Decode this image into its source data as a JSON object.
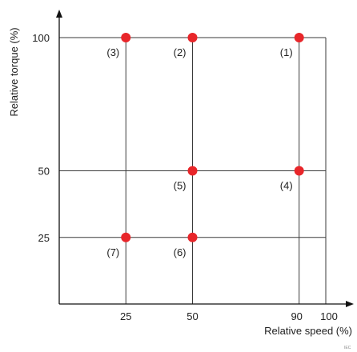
{
  "chart_data": {
    "type": "scatter",
    "xlabel": "Relative speed  (%)",
    "ylabel": "Relative torque  (%)",
    "xlim": [
      0,
      100
    ],
    "ylim": [
      0,
      100
    ],
    "x_ticks": [
      25,
      50,
      90,
      100
    ],
    "y_ticks": [
      25,
      50,
      100
    ],
    "grid_x": [
      25,
      50,
      90,
      100
    ],
    "grid_y": [
      25,
      50,
      100
    ],
    "point_color": "#e8262a",
    "grid_color": "#3a3a3a",
    "points": [
      {
        "label": "(1)",
        "x": 90,
        "y": 100
      },
      {
        "label": "(2)",
        "x": 50,
        "y": 100
      },
      {
        "label": "(3)",
        "x": 25,
        "y": 100
      },
      {
        "label": "(4)",
        "x": 90,
        "y": 50
      },
      {
        "label": "(5)",
        "x": 50,
        "y": 50
      },
      {
        "label": "(6)",
        "x": 50,
        "y": 25
      },
      {
        "label": "(7)",
        "x": 25,
        "y": 25
      }
    ]
  },
  "corner_mark": "IEC"
}
